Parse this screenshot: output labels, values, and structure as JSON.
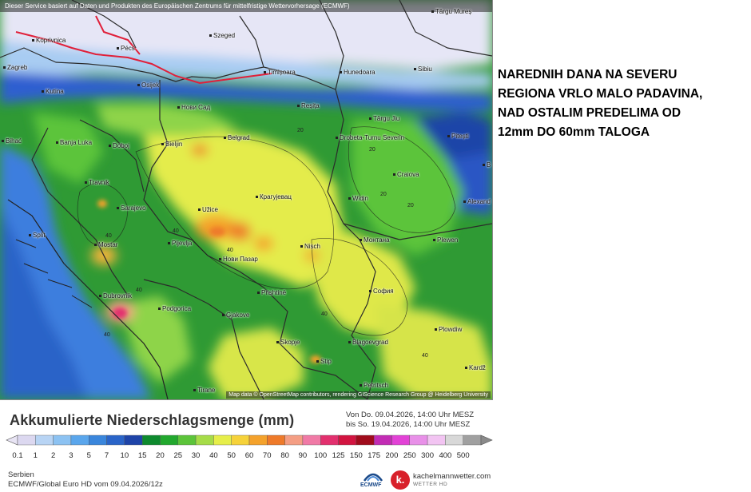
{
  "map": {
    "banner": "Dieser Service basiert auf Daten und Produkten des Europäischen Zentrums für mittelfristige Wettervorhersage (ECMWF)",
    "credit": "Map data © OpenStreetMap contributors, rendering GIScience Research Group @ Heidelberg University",
    "cities": [
      {
        "name": "Koprivnica"
      },
      {
        "name": "Szeged"
      },
      {
        "name": "Pécs"
      },
      {
        "name": "Zagreb"
      },
      {
        "name": "Osijek"
      },
      {
        "name": "Timișoara"
      },
      {
        "name": "Hunedoara"
      },
      {
        "name": "Sibiu"
      },
      {
        "name": "Kutina"
      },
      {
        "name": "Нови Сад"
      },
      {
        "name": "Reșița"
      },
      {
        "name": "Târgu Jiu"
      },
      {
        "name": "Banja Luka"
      },
      {
        "name": "Doboj"
      },
      {
        "name": "Bieljin"
      },
      {
        "name": "Belgrad"
      },
      {
        "name": "Drobeta-Turnu Severin"
      },
      {
        "name": "Pitești"
      },
      {
        "name": "Bihać"
      },
      {
        "name": "Craiova"
      },
      {
        "name": "Travnik"
      },
      {
        "name": "Sarajevo"
      },
      {
        "name": "Užice"
      },
      {
        "name": "Крагујевац"
      },
      {
        "name": "Widin"
      },
      {
        "name": "Alexand"
      },
      {
        "name": "Split"
      },
      {
        "name": "Mostar"
      },
      {
        "name": "Pljevlja"
      },
      {
        "name": "Nisch"
      },
      {
        "name": "Монтана"
      },
      {
        "name": "Plewen"
      },
      {
        "name": "Нови Пазар"
      },
      {
        "name": "Dubrovnik"
      },
      {
        "name": "Prishtinë"
      },
      {
        "name": "София"
      },
      {
        "name": "Podgorica"
      },
      {
        "name": "Gjakove"
      },
      {
        "name": "Plowdiw"
      },
      {
        "name": "Skopje"
      },
      {
        "name": "Blagoevgrad"
      },
      {
        "name": "Stip"
      },
      {
        "name": "Kardž"
      },
      {
        "name": "Petritsch"
      },
      {
        "name": "Tirane"
      },
      {
        "name": "Tārgu Mureș"
      },
      {
        "name": "B"
      }
    ],
    "isoline_labels": [
      "40",
      "40",
      "40",
      "40",
      "40",
      "40",
      "20",
      "20",
      "20",
      "20",
      "40"
    ]
  },
  "note": {
    "lines": [
      "NAREDNIH DANA NA SEVERU",
      "REGIONA VRLO MALO PADAVINA,",
      "NAD OSTALIM PREDELIMA OD",
      "12mm DO 60mm TALOGA"
    ]
  },
  "legend": {
    "title": "Akkumulierte Niederschlagsmenge (mm)",
    "period_from": "Von Do. 09.04.2026, 14:00 Uhr MESZ",
    "period_to": "bis So. 19.04.2026, 14:00 Uhr MESZ",
    "ticks": [
      "0.1",
      "1",
      "2",
      "3",
      "5",
      "7",
      "10",
      "15",
      "20",
      "25",
      "30",
      "40",
      "50",
      "60",
      "70",
      "80",
      "90",
      "100",
      "125",
      "150",
      "175",
      "200",
      "250",
      "300",
      "400",
      "500"
    ],
    "colors": [
      "#dcd8f0",
      "#b8d4f4",
      "#8cc2f2",
      "#5aa6ec",
      "#3a86dc",
      "#2a64c8",
      "#1e44a8",
      "#0e8a2e",
      "#22a82e",
      "#5cc43a",
      "#a6dc48",
      "#e6ee4a",
      "#f6d23a",
      "#f4a22c",
      "#ee7a2a",
      "#f49e84",
      "#f07aa6",
      "#e2306e",
      "#d21440",
      "#a00c1c",
      "#c22cb4",
      "#e242d6",
      "#e890e8",
      "#f2c4f2",
      "#d8d8d8",
      "#a0a0a0"
    ]
  },
  "footer": {
    "region": "Serbien",
    "model": "ECMWF/Global Euro HD vom  09.04.2026/12z",
    "ecmwf_label": "ECMWF",
    "brand_name": "kachelmannwetter.com",
    "brand_sub": "WETTER HD",
    "brand_letter": "k."
  }
}
